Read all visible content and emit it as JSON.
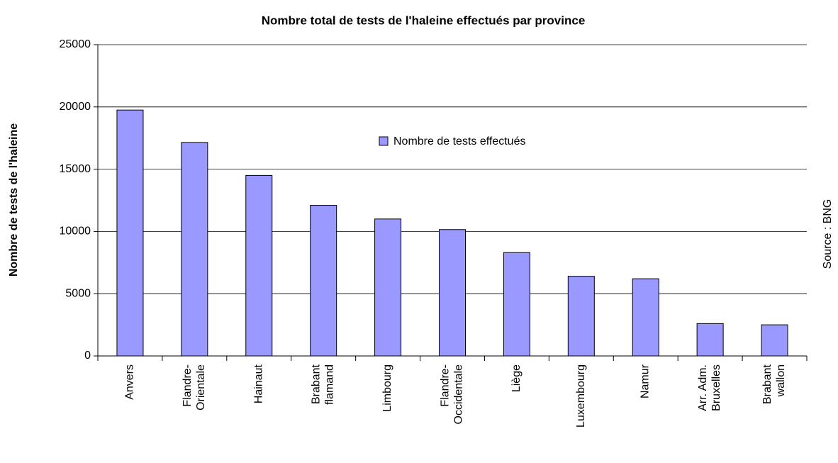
{
  "chart_data": {
    "type": "bar",
    "title": "Nombre total de tests de l'haleine effectués par province",
    "y_label": "Nombre de tests de l'haleine",
    "source": "Source : BNG",
    "categories": [
      "Anvers",
      "Flandre-\nOrientale",
      "Hainaut",
      "Brabant\nflamand",
      "Limbourg",
      "Flandre-\nOccidentale",
      "Liège",
      "Luxembourg",
      "Namur",
      "Arr. Adm.\nBruxelles",
      "Brabant\nwallon"
    ],
    "series": [
      {
        "name": "Nombre de tests effectués",
        "color": "#9999ff",
        "values": [
          19750,
          17150,
          14500,
          12100,
          11000,
          10150,
          8300,
          6400,
          6200,
          2600,
          2500
        ]
      }
    ],
    "ylim": [
      0,
      25000
    ],
    "yticks": [
      0,
      5000,
      10000,
      15000,
      20000,
      25000
    ],
    "grid": true
  }
}
